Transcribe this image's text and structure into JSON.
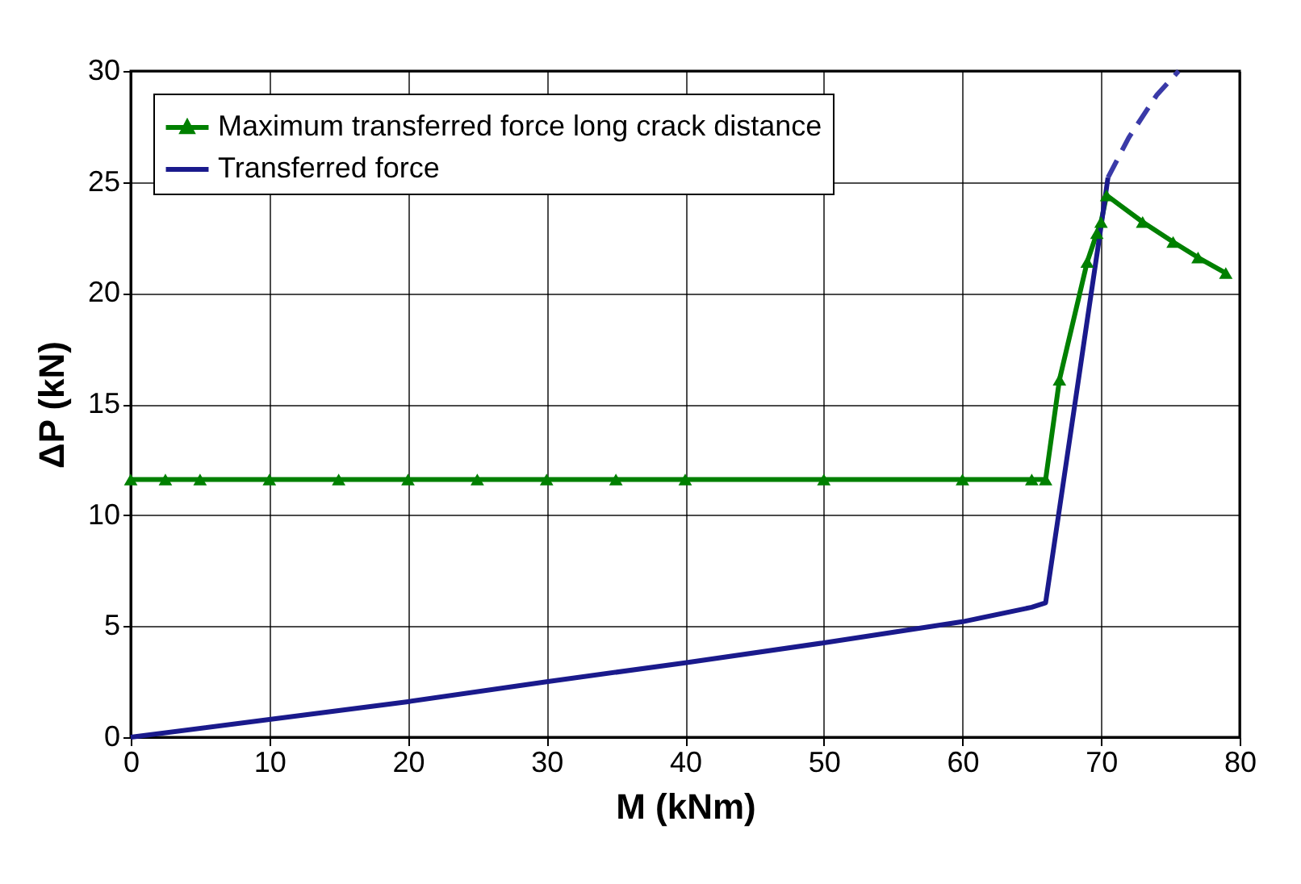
{
  "chart_data": {
    "type": "line",
    "xlabel": "M (kNm)",
    "ylabel": "ΔP (kN)",
    "xlim": [
      0,
      80
    ],
    "xticks": [
      0,
      10,
      20,
      30,
      40,
      50,
      60,
      70,
      80
    ],
    "ylim": [
      0,
      30
    ],
    "yticks": [
      0,
      5,
      10,
      15,
      20,
      25,
      30
    ],
    "grid": true,
    "legend": "top left",
    "series": [
      {
        "name": "Maximum transferred force long crack distance",
        "color": "#008000",
        "marker": "triangle",
        "line_style": "solid",
        "x": [
          0,
          2.5,
          5,
          10,
          15,
          20,
          25,
          30,
          35,
          40,
          50,
          60,
          65,
          66,
          67,
          69,
          69.7,
          70,
          70.4,
          73,
          75.2,
          77,
          79
        ],
        "values": [
          11.6,
          11.6,
          11.6,
          11.6,
          11.6,
          11.6,
          11.6,
          11.6,
          11.6,
          11.6,
          11.6,
          11.6,
          11.6,
          11.6,
          16.1,
          21.4,
          22.7,
          23.2,
          24.4,
          23.2,
          22.3,
          21.6,
          20.9
        ]
      },
      {
        "name": "Transferred force",
        "color": "#1a1a8c",
        "marker": "none",
        "line_style": "solid",
        "x": [
          0,
          10,
          20,
          30,
          40,
          50,
          60,
          65,
          66,
          70,
          70.5
        ],
        "values": [
          0,
          0.8,
          1.6,
          2.5,
          3.35,
          4.25,
          5.2,
          5.85,
          6.05,
          23,
          25.2
        ]
      },
      {
        "color": "#3a3aa8",
        "marker": "none",
        "line_style": "dashed",
        "x": [
          70.5,
          72,
          74,
          75.6
        ],
        "values": [
          25.2,
          27,
          28.9,
          30
        ]
      }
    ]
  }
}
